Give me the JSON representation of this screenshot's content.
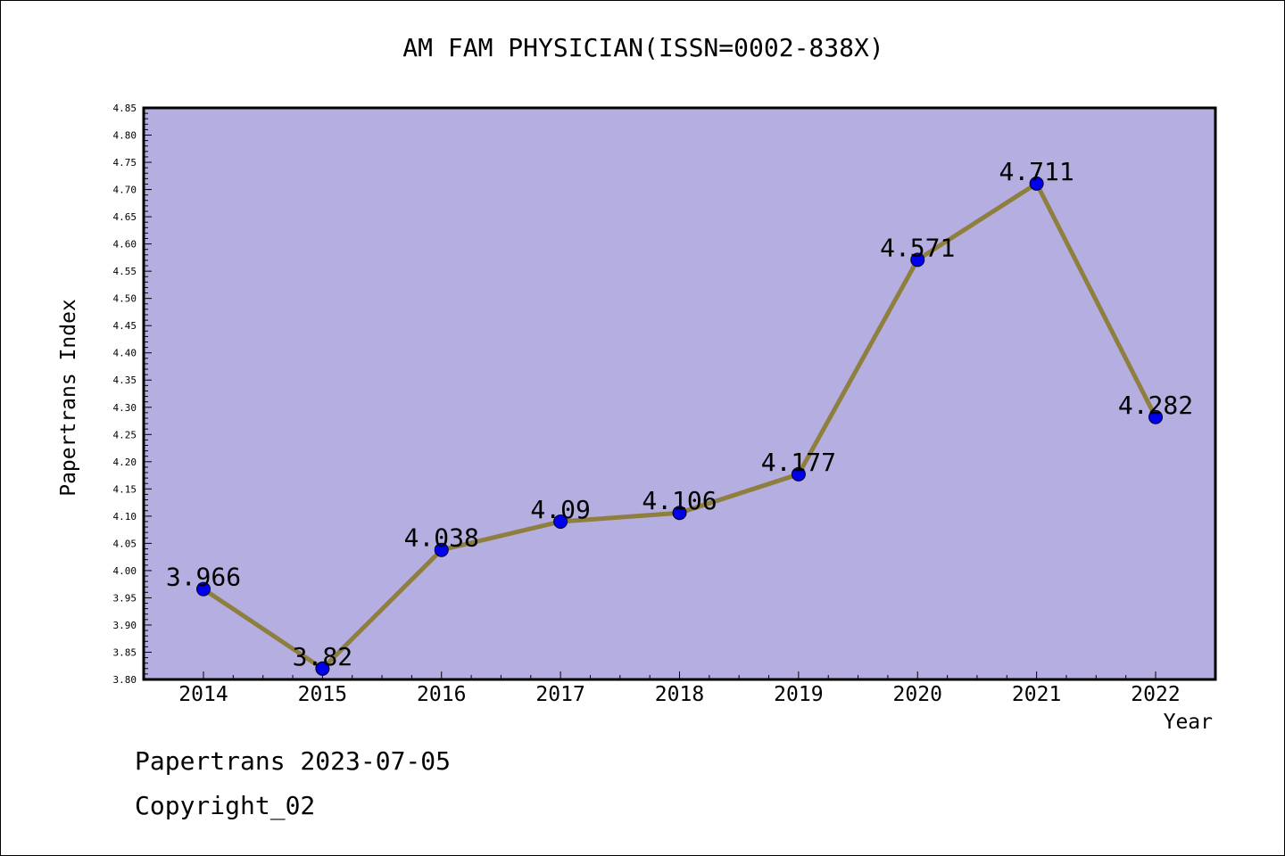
{
  "chart_data": {
    "type": "line",
    "title": "AM FAM PHYSICIAN(ISSN=0002-838X)",
    "xlabel": "Year",
    "ylabel": "Papertrans Index",
    "categories": [
      "2014",
      "2015",
      "2016",
      "2017",
      "2018",
      "2019",
      "2020",
      "2021",
      "2022"
    ],
    "series": [
      {
        "values": [
          3.966,
          3.82,
          4.038,
          4.09,
          4.106,
          4.177,
          4.571,
          4.711,
          4.282
        ],
        "labels": [
          "3.966",
          "3.82",
          "4.038",
          "4.09",
          "4.106",
          "4.177",
          "4.571",
          "4.711",
          "4.282"
        ]
      }
    ],
    "ylim": [
      3.8,
      4.85
    ],
    "yticks": [
      "3.80",
      "3.85",
      "3.90",
      "3.95",
      "4.00",
      "4.05",
      "4.10",
      "4.15",
      "4.20",
      "4.25",
      "4.30",
      "4.35",
      "4.40",
      "4.45",
      "4.50",
      "4.55",
      "4.60",
      "4.65",
      "4.70",
      "4.75",
      "4.80",
      "4.85"
    ],
    "grid": false,
    "legend": "none",
    "colors": {
      "plot_background": "#b5aee1",
      "line": "#8f7f3f",
      "marker": "#0000ee"
    }
  },
  "footer": {
    "date_text": "Papertrans 2023-07-05",
    "copyright_text": "Copyright_02"
  }
}
